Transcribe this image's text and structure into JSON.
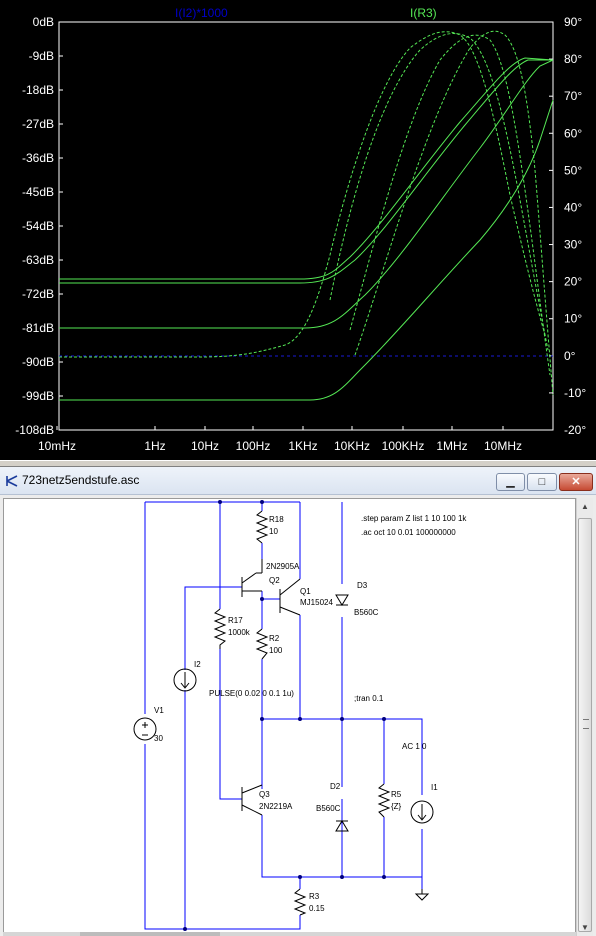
{
  "plot": {
    "trace_labels": [
      "I(I2)*1000",
      "I(R3)"
    ],
    "trace_colors": [
      "#0000c8",
      "#55e855"
    ],
    "y_left_labels": [
      "0dB",
      "-9dB",
      "-18dB",
      "-27dB",
      "-36dB",
      "-45dB",
      "-54dB",
      "-63dB",
      "-72dB",
      "-81dB",
      "-90dB",
      "-99dB",
      "-108dB"
    ],
    "y_right_labels": [
      "90°",
      "80°",
      "70°",
      "60°",
      "50°",
      "40°",
      "30°",
      "20°",
      "10°",
      "0°",
      "-10°",
      "-20°"
    ],
    "x_labels": [
      "10mHz",
      "1Hz",
      "10Hz",
      "100Hz",
      "1KHz",
      "10KHz",
      "100KHz",
      "1MHz",
      "10MHz"
    ],
    "background": "#000000",
    "frame_color": "#ffffff"
  },
  "chart_data": {
    "type": "line",
    "title": "",
    "xlabel": "",
    "ylabel": "",
    "x_scale": "log",
    "xlim_hz": [
      0.01,
      100000000
    ],
    "ylim_db": [
      -108,
      0
    ],
    "y2lim_deg": [
      -20,
      90
    ],
    "grid": false,
    "series": [
      {
        "name": "I(R3)",
        "values_db": [
          {
            "x": 0.01,
            "y": -69
          },
          {
            "x": 1000,
            "y": -69
          },
          {
            "x": 30000,
            "y": -61
          },
          {
            "x": 300000,
            "y": -36
          },
          {
            "x": 3000000,
            "y": -15
          },
          {
            "x": 10000000,
            "y": -12
          },
          {
            "x": 100000000,
            "y": -12
          }
        ]
      },
      {
        "name": "I(R3)",
        "values_db": [
          {
            "x": 0.01,
            "y": -70
          },
          {
            "x": 1000,
            "y": -70
          },
          {
            "x": 30000,
            "y": -62
          },
          {
            "x": 300000,
            "y": -37
          },
          {
            "x": 3000000,
            "y": -16
          },
          {
            "x": 10000000,
            "y": -12
          },
          {
            "x": 100000000,
            "y": -12
          }
        ]
      },
      {
        "name": "I(R3)",
        "values_db": [
          {
            "x": 0.01,
            "y": -81
          },
          {
            "x": 5000,
            "y": -81
          },
          {
            "x": 50000,
            "y": -73
          },
          {
            "x": 1000000,
            "y": -45
          },
          {
            "x": 10000000,
            "y": -22
          },
          {
            "x": 100000000,
            "y": -12
          }
        ]
      },
      {
        "name": "I(R3)",
        "values_db": [
          {
            "x": 0.01,
            "y": -101
          },
          {
            "x": 5000,
            "y": -101
          },
          {
            "x": 50000,
            "y": -92
          },
          {
            "x": 1000000,
            "y": -65
          },
          {
            "x": 10000000,
            "y": -43
          },
          {
            "x": 100000000,
            "y": -22
          }
        ]
      },
      {
        "name": "I(I2)*1000",
        "values_db": [
          {
            "x": 0.01,
            "y": -90
          },
          {
            "x": 100000000,
            "y": -90
          }
        ]
      }
    ]
  },
  "schematic_window": {
    "title": "723netz5endstufe.asc",
    "min_label": "▁",
    "max_label": "□",
    "close_label": "✕",
    "scroll_up": "▲",
    "scroll_down": "▼",
    "directives": [
      ".step param Z list 1 10 100 1k",
      ".ac oct 10 0.01 100000000",
      ";tran 0.1"
    ],
    "components": {
      "R18": [
        "R18",
        "10"
      ],
      "Q2": [
        "Q2",
        "2N2905A"
      ],
      "Q1": [
        "Q1",
        "MJ15024"
      ],
      "D3": [
        "D3",
        "B560C"
      ],
      "R17": [
        "R17",
        "1000k"
      ],
      "R2": [
        "R2",
        "100"
      ],
      "I2": [
        "I2",
        "PULSE(0 0.02 0 0.1 1u)"
      ],
      "V1": [
        "V1",
        "30"
      ],
      "I1": [
        "I1",
        "AC 1 0"
      ],
      "Q3": [
        "Q3",
        "2N2219A"
      ],
      "D2": [
        "D2",
        "B560C"
      ],
      "R5": [
        "R5",
        "{Z}"
      ],
      "R3": [
        "R3",
        "0.15"
      ]
    },
    "wire_color": "#0000ff"
  }
}
